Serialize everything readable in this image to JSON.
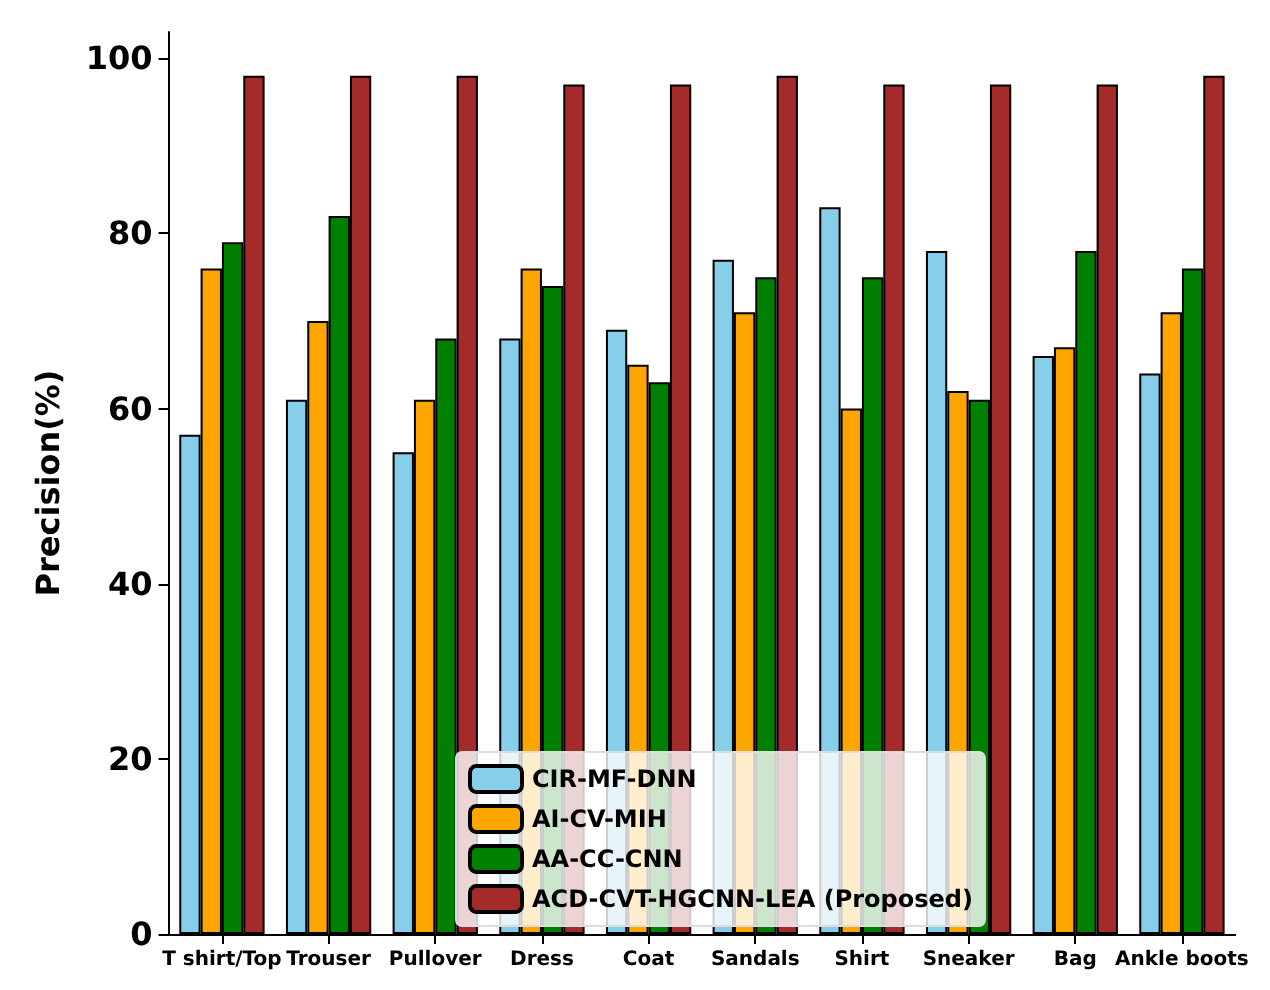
{
  "chart_data": {
    "type": "bar",
    "ylabel": "Precision(%)",
    "categories": [
      "T shirt/Top",
      "Trouser",
      "Pullover",
      "Dress",
      "Coat",
      "Sandals",
      "Shirt",
      "Sneaker",
      "Bag",
      "Ankle boots"
    ],
    "series": [
      {
        "name": "CIR-MF-DNN",
        "color": "#87ceeb",
        "values": [
          57,
          61,
          55,
          68,
          69,
          77,
          83,
          78,
          66,
          64
        ]
      },
      {
        "name": "AI-CV-MIH",
        "color": "#ffa500",
        "values": [
          76,
          70,
          61,
          76,
          65,
          71,
          60,
          62,
          67,
          71
        ]
      },
      {
        "name": "AA-CC-CNN",
        "color": "#008000",
        "values": [
          79,
          82,
          68,
          74,
          63,
          75,
          75,
          61,
          78,
          76
        ]
      },
      {
        "name": "ACD-CVT-HGCNN-LEA (Proposed)",
        "color": "#a52a2a",
        "values": [
          98,
          98,
          98,
          97,
          97,
          98,
          97,
          97,
          97,
          98
        ]
      }
    ],
    "ylim": [
      0,
      103
    ],
    "yticks": [
      0,
      20,
      40,
      60,
      80,
      100
    ],
    "grid": false,
    "legend": "bottom"
  }
}
